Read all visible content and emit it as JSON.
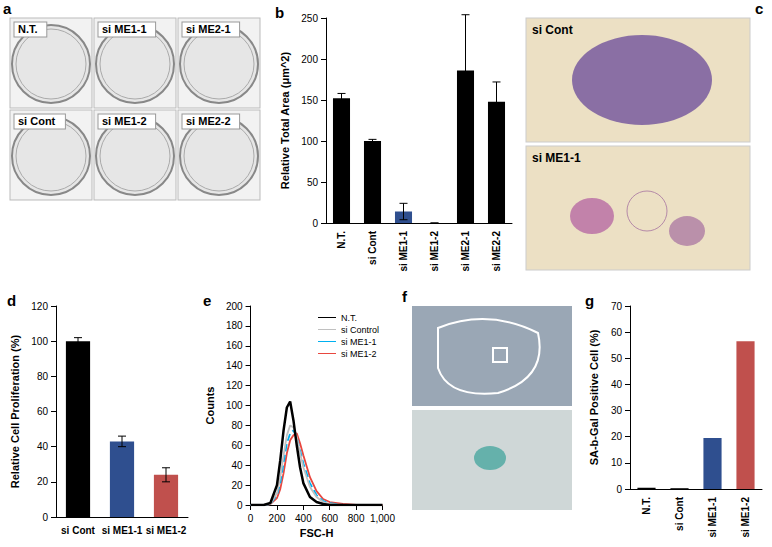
{
  "images": [
    {
      "panel": "a",
      "labels": [
        "N.T.",
        "si ME1-1",
        "si ME2-1",
        "si Cont",
        "si ME1-2",
        "si ME2-2"
      ]
    },
    {
      "panel": "c",
      "labels": [
        "si Cont",
        "si ME1-1"
      ]
    },
    {
      "panel": "f"
    }
  ],
  "chart_data": [
    {
      "type": "bar",
      "title": "b",
      "ylabel": "Relative Total Area (μm^2)",
      "categories": [
        "N.T.",
        "si Cont",
        "si ME1-1",
        "si ME1-2",
        "si ME2-1",
        "si ME2-2"
      ],
      "values": [
        152,
        100,
        14,
        0,
        186,
        148
      ],
      "errors": [
        6,
        2,
        10,
        0,
        68,
        24
      ],
      "colors": [
        "#000000",
        "#000000",
        "#2f4f8f",
        "#000000",
        "#000000",
        "#000000"
      ],
      "ylim": [
        0,
        250
      ],
      "yticks": [
        0,
        50,
        100,
        150,
        200,
        250
      ]
    },
    {
      "type": "bar",
      "title": "d",
      "ylabel": "Relative Cell Proliferation (%)",
      "categories": [
        "si Cont",
        "si ME1-1",
        "si ME1-2"
      ],
      "values": [
        100,
        43,
        24
      ],
      "errors": [
        2,
        3,
        4
      ],
      "colors": [
        "#000000",
        "#2f4f8f",
        "#c0504d"
      ],
      "ylim": [
        0,
        120
      ],
      "yticks": [
        0,
        20,
        40,
        60,
        80,
        100,
        120
      ]
    },
    {
      "type": "line",
      "title": "e",
      "xlabel": "FSC-H",
      "ylabel": "Counts",
      "x": [
        0,
        50,
        100,
        150,
        200,
        225,
        250,
        275,
        300,
        325,
        350,
        375,
        400,
        450,
        500,
        550,
        600,
        700,
        800,
        1000
      ],
      "series": [
        {
          "name": "N.T.",
          "color": "#000000",
          "line_style": "solid",
          "values": [
            0,
            0,
            0,
            2,
            20,
            45,
            75,
            98,
            104,
            85,
            60,
            38,
            22,
            8,
            3,
            1,
            0,
            0,
            0,
            0
          ]
        },
        {
          "name": "si Control",
          "color": "#c0c0c0",
          "line_style": "solid",
          "values": [
            0,
            0,
            0,
            1,
            12,
            28,
            50,
            70,
            80,
            78,
            68,
            52,
            38,
            18,
            8,
            3,
            1,
            0,
            0,
            0
          ]
        },
        {
          "name": "si ME1-1",
          "color": "#00b0f0",
          "line_style": "dashed",
          "values": [
            0,
            0,
            0,
            1,
            10,
            22,
            42,
            62,
            72,
            75,
            68,
            55,
            42,
            22,
            10,
            4,
            2,
            0,
            0,
            0
          ]
        },
        {
          "name": "si ME1-2",
          "color": "#e8473f",
          "line_style": "solid",
          "values": [
            0,
            0,
            0,
            1,
            7,
            16,
            32,
            52,
            65,
            70,
            72,
            62,
            50,
            28,
            14,
            6,
            3,
            1,
            0,
            0
          ]
        }
      ],
      "xlim": [
        0,
        1000
      ],
      "xticks": [
        0,
        200,
        400,
        600,
        800,
        1000
      ],
      "ylim": [
        0,
        200
      ],
      "yticks": [
        0,
        20,
        40,
        60,
        80,
        100,
        120,
        140,
        160,
        180,
        200
      ],
      "legend": "top-right"
    },
    {
      "type": "bar",
      "title": "g",
      "ylabel": "SA-b-Gal Positive Cell (%)",
      "categories": [
        "N.T.",
        "si Cont",
        "si ME1-1",
        "si ME1-2"
      ],
      "values": [
        0.5,
        0.3,
        19.5,
        56.5
      ],
      "colors": [
        "#000000",
        "#000000",
        "#2f4f8f",
        "#c0504d"
      ],
      "ylim": [
        0,
        70
      ],
      "yticks": [
        0,
        10,
        20,
        30,
        40,
        50,
        60,
        70
      ]
    }
  ]
}
